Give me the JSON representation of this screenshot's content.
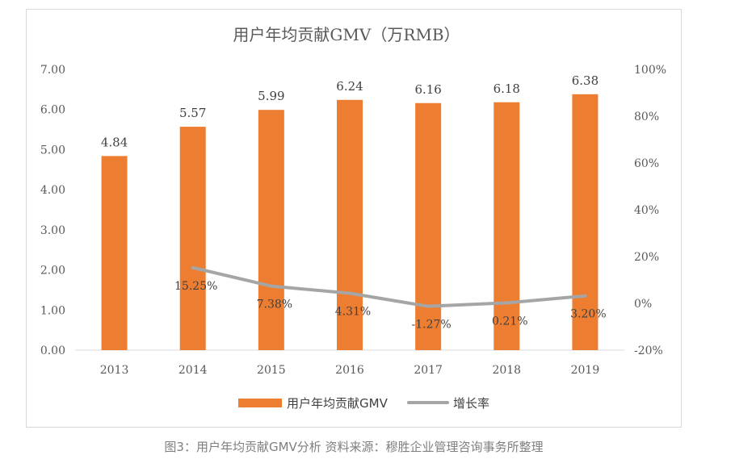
{
  "chart_data": {
    "type": "bar",
    "title": "用户年均贡献GMV（万RMB）",
    "categories": [
      "2013",
      "2014",
      "2015",
      "2016",
      "2017",
      "2018",
      "2019"
    ],
    "series": [
      {
        "name": "用户年均贡献GMV",
        "type": "bar",
        "axis": "left",
        "values": [
          4.84,
          5.57,
          5.99,
          6.24,
          6.16,
          6.18,
          6.38
        ],
        "labels": [
          "4.84",
          "5.57",
          "5.99",
          "6.24",
          "6.16",
          "6.18",
          "6.38"
        ],
        "color": "#ed7d31"
      },
      {
        "name": "增长率",
        "type": "line",
        "axis": "right",
        "values": [
          null,
          15.25,
          7.38,
          4.31,
          -1.27,
          0.21,
          3.2
        ],
        "labels": [
          null,
          "15.25%",
          "7.38%",
          "4.31%",
          "-1.27%",
          "0.21%",
          "3.20%"
        ],
        "color": "#a5a5a5"
      }
    ],
    "y_left": {
      "ylim": [
        0,
        7
      ],
      "ticks": [
        "0.00",
        "1.00",
        "2.00",
        "3.00",
        "4.00",
        "5.00",
        "6.00",
        "7.00"
      ]
    },
    "y_right": {
      "ylim": [
        -20,
        100
      ],
      "ticks": [
        "-20%",
        "0%",
        "20%",
        "40%",
        "60%",
        "80%",
        "100%"
      ]
    },
    "grid": false,
    "legend": "bottom"
  },
  "caption": "图3：用户年均贡献GMV分析   资料来源：穆胜企业管理咨询事务所整理"
}
